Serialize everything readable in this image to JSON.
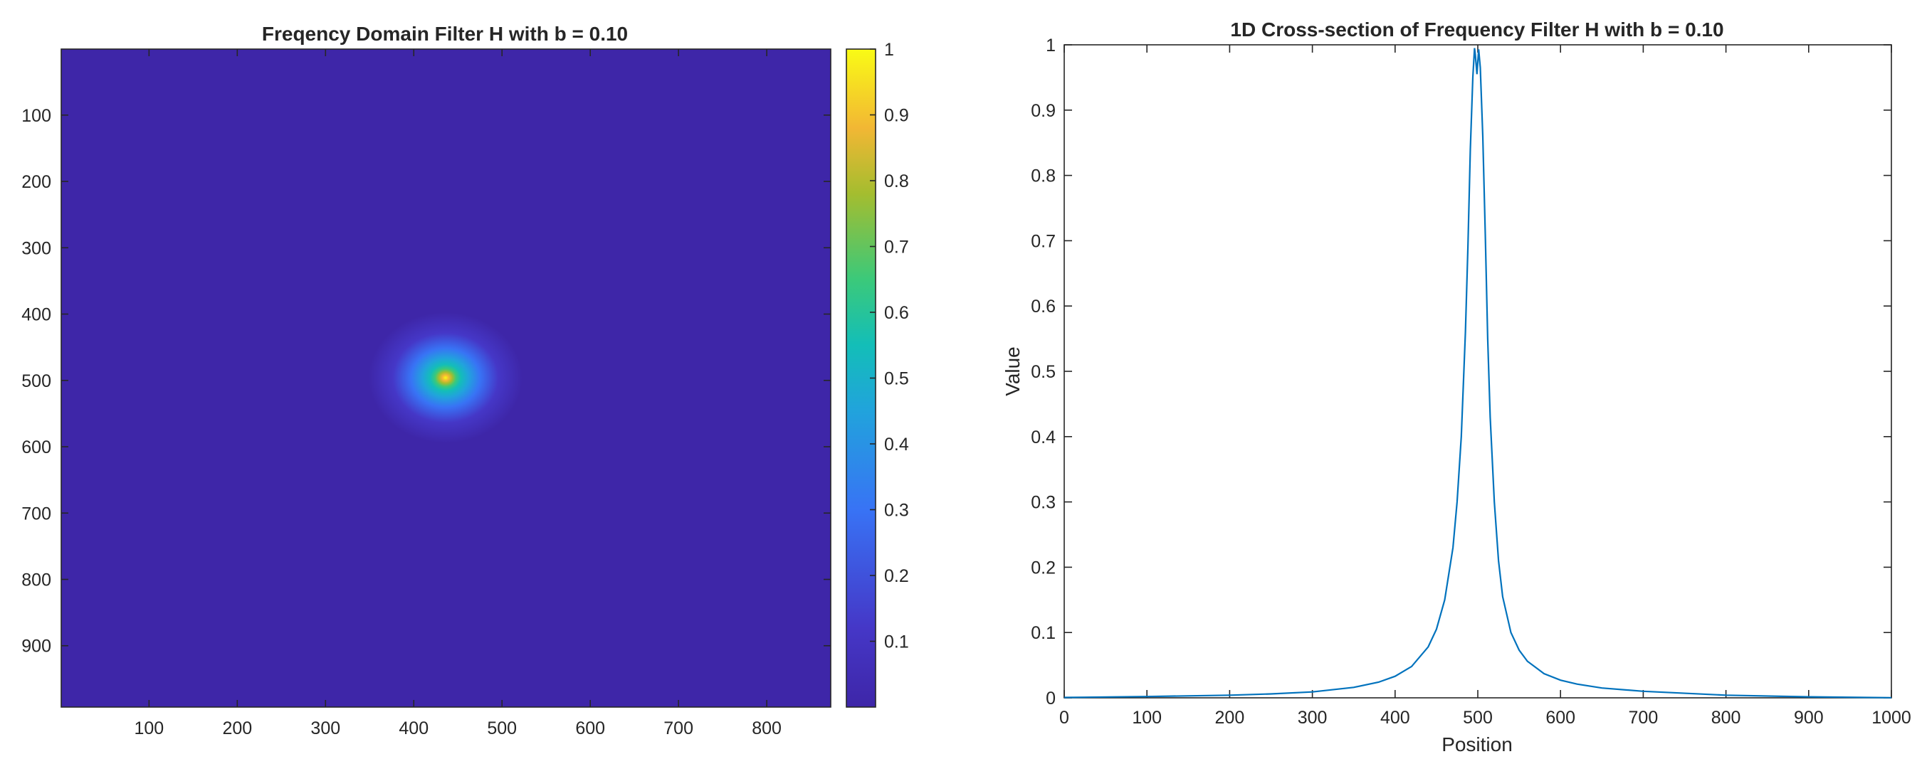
{
  "chart_data": [
    {
      "type": "heatmap",
      "title": "Freqency Domain Filter H with b = 0.10",
      "xlabel": "",
      "ylabel": "",
      "xlim": [
        0.5,
        872.5
      ],
      "ylim": [
        0.5,
        992.5
      ],
      "y_direction": "reverse",
      "x_ticks": [
        100,
        200,
        300,
        400,
        500,
        600,
        700,
        800
      ],
      "y_ticks": [
        100,
        200,
        300,
        400,
        500,
        600,
        700,
        800,
        900
      ],
      "peak": {
        "x": 436,
        "y": 496,
        "value": 1.0
      },
      "background_value": 0.0,
      "colormap": "parula",
      "colorbar": {
        "placement": "right",
        "range": [
          0,
          1
        ],
        "ticks": [
          0.1,
          0.2,
          0.3,
          0.4,
          0.5,
          0.6,
          0.7,
          0.8,
          0.9,
          1
        ],
        "tick_labels": [
          "0.1",
          "0.2",
          "0.3",
          "0.4",
          "0.5",
          "0.6",
          "0.7",
          "0.8",
          "0.9",
          "1"
        ]
      },
      "colors": {
        "background": "#3e26a8",
        "c1": "#4537c7",
        "c2": "#3873f5",
        "c3": "#21a3dc",
        "c4": "#13beb8",
        "c5": "#3bc97a",
        "c6": "#a4bd2f",
        "c7": "#f2b734",
        "c8": "#f9fb15"
      }
    },
    {
      "type": "line",
      "title": "1D Cross-section of Frequency Filter H with b = 0.10",
      "xlabel": "Position",
      "ylabel": "Value",
      "xlim": [
        0,
        1000
      ],
      "ylim": [
        0,
        1
      ],
      "x_ticks": [
        0,
        100,
        200,
        300,
        400,
        500,
        600,
        700,
        800,
        900,
        1000
      ],
      "y_ticks": [
        0,
        0.1,
        0.2,
        0.3,
        0.4,
        0.5,
        0.6,
        0.7,
        0.8,
        0.9,
        1
      ],
      "y_tick_labels": [
        "0",
        "0.1",
        "0.2",
        "0.3",
        "0.4",
        "0.5",
        "0.6",
        "0.7",
        "0.8",
        "0.9",
        "1"
      ],
      "grid": false,
      "series": [
        {
          "color": "#0072bd",
          "x": [
            0,
            100,
            200,
            250,
            300,
            350,
            380,
            400,
            420,
            440,
            450,
            460,
            470,
            475,
            480,
            485,
            488,
            491,
            494,
            496,
            497,
            499,
            501,
            503,
            506,
            509,
            512,
            515,
            520,
            525,
            530,
            540,
            550,
            560,
            580,
            600,
            620,
            650,
            700,
            800,
            900,
            1000
          ],
          "y": [
            0.0005,
            0.002,
            0.004,
            0.006,
            0.009,
            0.016,
            0.024,
            0.033,
            0.048,
            0.078,
            0.105,
            0.15,
            0.23,
            0.3,
            0.4,
            0.56,
            0.69,
            0.84,
            0.95,
            0.995,
            0.985,
            0.955,
            0.993,
            0.965,
            0.86,
            0.71,
            0.55,
            0.43,
            0.3,
            0.21,
            0.155,
            0.1,
            0.073,
            0.056,
            0.037,
            0.027,
            0.021,
            0.015,
            0.01,
            0.004,
            0.0015,
            0.0002
          ]
        }
      ]
    }
  ]
}
